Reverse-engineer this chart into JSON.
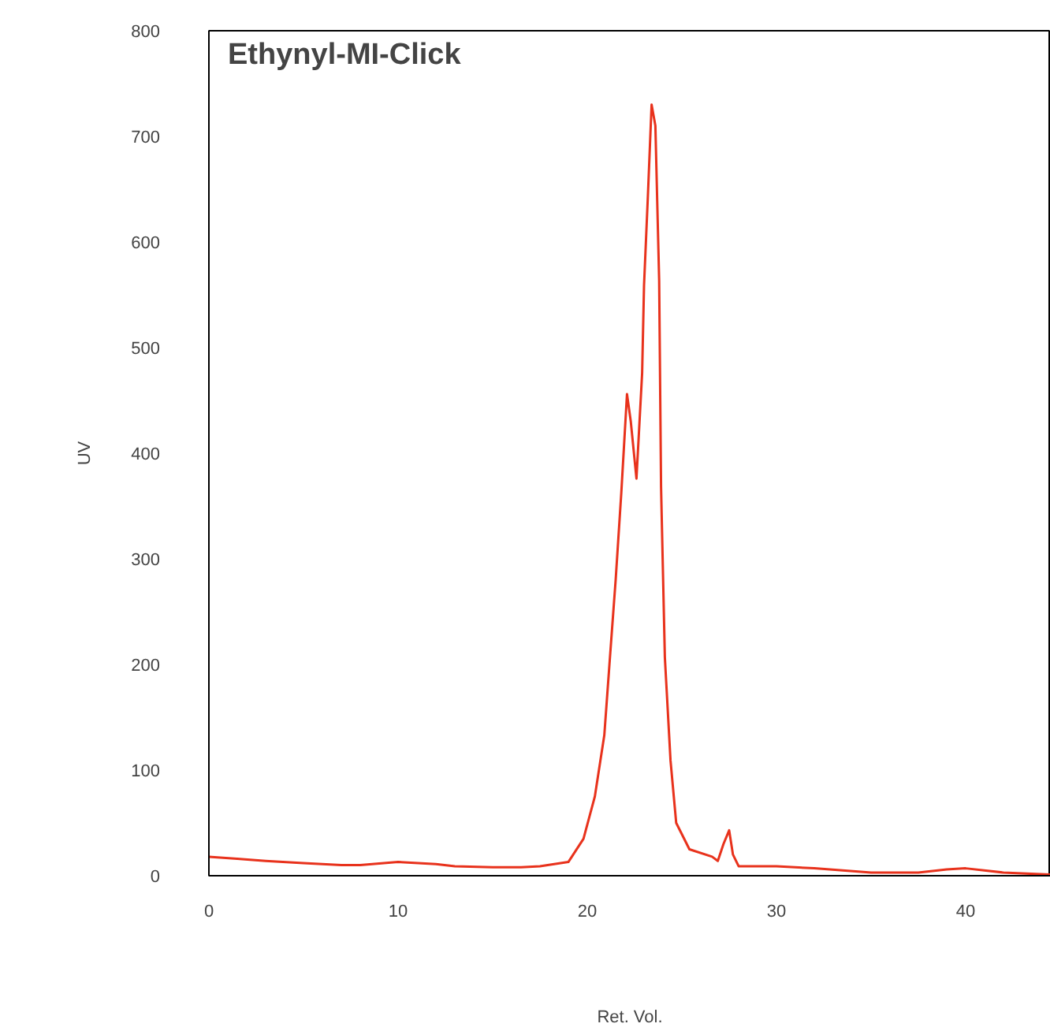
{
  "chart_data": {
    "type": "line",
    "title": "Ethynyl-MI-Click",
    "xlabel": "Ret. Vol.",
    "ylabel": "UV",
    "xlim": [
      0,
      44.5
    ],
    "xticks": [
      0,
      10,
      20,
      30,
      40
    ],
    "ylim": [
      0,
      800
    ],
    "yticks": [
      0,
      100,
      200,
      300,
      400,
      500,
      600,
      700,
      800
    ],
    "series": [
      {
        "color": "#e8321c",
        "x": [
          0,
          1.5,
          3,
          5,
          7,
          8,
          10,
          12,
          13,
          15,
          16.5,
          17.5,
          19,
          19.8,
          20.4,
          20.9,
          21.2,
          21.5,
          21.8,
          22.1,
          22.3,
          22.6,
          22.9,
          23.0,
          23.2,
          23.4,
          23.6,
          23.8,
          23.9,
          24.1,
          24.4,
          24.7,
          25.4,
          26.6,
          26.9,
          27.2,
          27.5,
          27.7,
          28.0,
          30,
          32,
          35,
          37.5,
          39,
          40,
          42,
          44.5
        ],
        "values": [
          18,
          16,
          14,
          12,
          10,
          10,
          13,
          11,
          9,
          8,
          8,
          9,
          13,
          35,
          75,
          133,
          207,
          280,
          363,
          456,
          430,
          376,
          476,
          559,
          642,
          730,
          710,
          563,
          368,
          207,
          109,
          50,
          25,
          18,
          14,
          30,
          43,
          20,
          9,
          9,
          7,
          3,
          3,
          6,
          7,
          3,
          1
        ]
      }
    ]
  }
}
